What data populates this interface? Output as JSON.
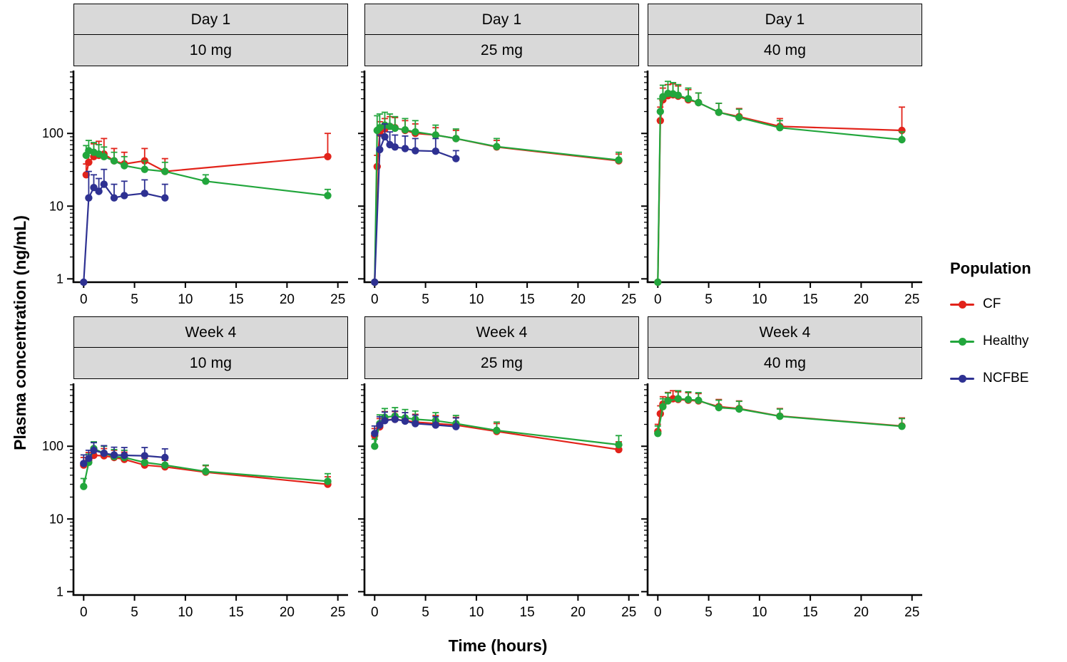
{
  "ylabel": "Plasma concentration (ng/mL)",
  "xlabel": "Time (hours)",
  "legend": {
    "title": "Population",
    "entries": [
      {
        "label": "CF",
        "color": "#e2231a"
      },
      {
        "label": "Healthy",
        "color": "#22a63c"
      },
      {
        "label": "NCFBE",
        "color": "#2e3192"
      }
    ]
  },
  "chart_data": {
    "type": "line",
    "xlim": [
      -1,
      26
    ],
    "xticks": [
      0,
      5,
      10,
      15,
      20,
      25
    ],
    "ylog": true,
    "ylim": [
      0.9,
      700
    ],
    "yticks": [
      1,
      10,
      100
    ],
    "panels": [
      {
        "row_label": "Day 1",
        "dose_label": "10 mg",
        "show_y_labels": true,
        "series": [
          {
            "name": "CF",
            "x": [
              0.25,
              0.5,
              1,
              1.5,
              2,
              3,
              4,
              6,
              8,
              24
            ],
            "y": [
              27,
              40,
              48,
              50,
              52,
              42,
              38,
              42,
              30,
              48
            ],
            "eu": [
              38,
              58,
              72,
              78,
              85,
              62,
              55,
              62,
              45,
              100
            ]
          },
          {
            "name": "Healthy",
            "x": [
              0.25,
              0.5,
              1,
              1.5,
              2,
              3,
              4,
              6,
              8,
              12,
              24
            ],
            "y": [
              50,
              58,
              55,
              52,
              48,
              42,
              36,
              32,
              30,
              22,
              14
            ],
            "eu": [
              68,
              80,
              75,
              70,
              65,
              55,
              48,
              42,
              40,
              27,
              17
            ]
          },
          {
            "name": "NCFBE",
            "x": [
              0,
              0.5,
              1,
              1.5,
              2,
              3,
              4,
              6,
              8
            ],
            "y": [
              0.9,
              13,
              18,
              16,
              20,
              13,
              14,
              15,
              13
            ],
            "eu": [
              0.9,
              30,
              27,
              24,
              32,
              20,
              22,
              23,
              20
            ]
          }
        ]
      },
      {
        "row_label": "Day 1",
        "dose_label": "25 mg",
        "show_y_labels": false,
        "series": [
          {
            "name": "CF",
            "x": [
              0,
              0.25,
              0.5,
              1,
              1.5,
              2,
              3,
              4,
              6,
              8,
              12,
              24
            ],
            "y": [
              0.9,
              35,
              100,
              115,
              125,
              120,
              110,
              100,
              95,
              85,
              65,
              42
            ],
            "eu": [
              0.9,
              50,
              145,
              160,
              170,
              165,
              150,
              135,
              120,
              110,
              80,
              52
            ]
          },
          {
            "name": "Healthy",
            "x": [
              0,
              0.25,
              0.5,
              1,
              1.5,
              2,
              3,
              4,
              6,
              8,
              12,
              24
            ],
            "y": [
              0.9,
              110,
              120,
              130,
              125,
              118,
              112,
              105,
              95,
              85,
              66,
              43
            ],
            "eu": [
              0.9,
              175,
              185,
              195,
              185,
              170,
              160,
              150,
              130,
              115,
              85,
              55
            ]
          },
          {
            "name": "NCFBE",
            "x": [
              0,
              0.5,
              1,
              1.5,
              2,
              3,
              4,
              6,
              8
            ],
            "y": [
              0.9,
              60,
              90,
              70,
              65,
              62,
              58,
              57,
              45
            ],
            "eu": [
              0.9,
              95,
              135,
              105,
              95,
              92,
              85,
              85,
              58
            ]
          }
        ]
      },
      {
        "row_label": "Day 1",
        "dose_label": "40 mg",
        "show_y_labels": false,
        "series": [
          {
            "name": "CF",
            "x": [
              0,
              0.25,
              0.5,
              1,
              1.5,
              2,
              3,
              4,
              6,
              8,
              12,
              24
            ],
            "y": [
              0.9,
              150,
              290,
              330,
              340,
              325,
              290,
              265,
              195,
              170,
              125,
              110
            ],
            "eu": [
              0.9,
              230,
              420,
              470,
              480,
              450,
              400,
              360,
              260,
              220,
              160,
              230
            ]
          },
          {
            "name": "Healthy",
            "x": [
              0,
              0.25,
              0.5,
              1,
              1.5,
              2,
              3,
              4,
              6,
              8,
              12,
              24
            ],
            "y": [
              0.9,
              200,
              320,
              355,
              350,
              335,
              300,
              265,
              195,
              165,
              120,
              82
            ],
            "eu": [
              0.9,
              300,
              460,
              520,
              500,
              470,
              420,
              360,
              260,
              215,
              150,
              105
            ]
          }
        ]
      },
      {
        "row_label": "Week 4",
        "dose_label": "10 mg",
        "show_y_labels": true,
        "series": [
          {
            "name": "CF",
            "x": [
              0,
              0.5,
              1,
              2,
              3,
              4,
              6,
              8,
              12,
              24
            ],
            "y": [
              55,
              65,
              75,
              74,
              70,
              66,
              55,
              52,
              44,
              30
            ],
            "eu": [
              70,
              82,
              95,
              93,
              88,
              83,
              68,
              64,
              54,
              38
            ]
          },
          {
            "name": "Healthy",
            "x": [
              0,
              0.5,
              1,
              2,
              3,
              4,
              6,
              8,
              12,
              24
            ],
            "y": [
              28,
              60,
              93,
              80,
              72,
              70,
              60,
              55,
              45,
              33
            ],
            "eu": [
              36,
              78,
              115,
              100,
              90,
              88,
              75,
              68,
              55,
              42
            ]
          },
          {
            "name": "NCFBE",
            "x": [
              0,
              0.5,
              1,
              2,
              3,
              4,
              6,
              8
            ],
            "y": [
              58,
              68,
              88,
              80,
              76,
              75,
              74,
              70
            ],
            "eu": [
              76,
              88,
              112,
              102,
              97,
              96,
              96,
              92
            ]
          }
        ]
      },
      {
        "row_label": "Week 4",
        "dose_label": "25 mg",
        "show_y_labels": false,
        "series": [
          {
            "name": "CF",
            "x": [
              0,
              0.5,
              1,
              2,
              3,
              4,
              6,
              8,
              12,
              24
            ],
            "y": [
              140,
              185,
              230,
              235,
              225,
              215,
              205,
              195,
              160,
              90
            ],
            "eu": [
              175,
              240,
              300,
              300,
              290,
              275,
              265,
              250,
              205,
              115
            ]
          },
          {
            "name": "Healthy",
            "x": [
              0,
              0.5,
              1,
              2,
              3,
              4,
              6,
              8,
              12,
              24
            ],
            "y": [
              100,
              205,
              250,
              260,
              245,
              235,
              225,
              205,
              165,
              105
            ],
            "eu": [
              125,
              270,
              330,
              340,
              320,
              305,
              290,
              265,
              215,
              140
            ]
          },
          {
            "name": "NCFBE",
            "x": [
              0,
              0.5,
              1,
              2,
              3,
              4,
              6,
              8
            ],
            "y": [
              150,
              195,
              225,
              235,
              222,
              205,
              196,
              186
            ],
            "eu": [
              190,
              255,
              295,
              305,
              290,
              268,
              255,
              245
            ]
          }
        ]
      },
      {
        "row_label": "Week 4",
        "dose_label": "40 mg",
        "show_y_labels": false,
        "series": [
          {
            "name": "CF",
            "x": [
              0,
              0.25,
              0.5,
              1,
              1.5,
              2,
              3,
              4,
              6,
              8,
              12,
              24
            ],
            "y": [
              160,
              280,
              380,
              430,
              450,
              440,
              430,
              420,
              350,
              330,
              260,
              190
            ],
            "eu": [
              200,
              360,
              480,
              550,
              580,
              560,
              545,
              530,
              440,
              420,
              330,
              245
            ]
          },
          {
            "name": "Healthy",
            "x": [
              0,
              0.5,
              1,
              2,
              3,
              4,
              6,
              8,
              12,
              24
            ],
            "y": [
              150,
              350,
              420,
              450,
              440,
              428,
              340,
              325,
              258,
              188
            ],
            "eu": [
              190,
              450,
              540,
              580,
              560,
              545,
              430,
              415,
              325,
              240
            ]
          }
        ]
      }
    ]
  }
}
